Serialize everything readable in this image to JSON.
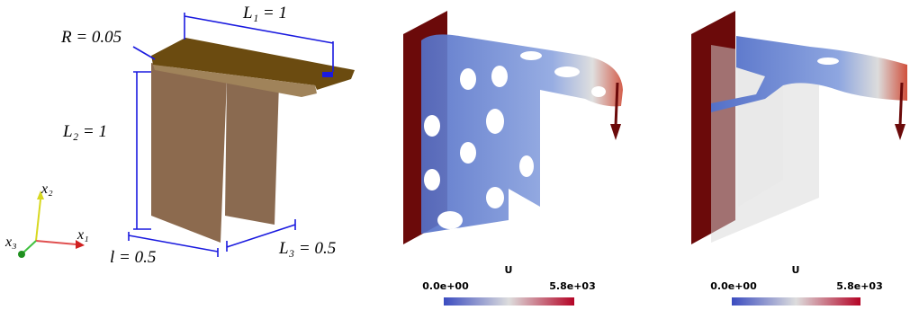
{
  "geometry": {
    "labels": {
      "R": "R = 0.05",
      "L1": "L₁ = 1",
      "L2": "L₂ = 1",
      "l": "l = 0.5",
      "L3": "L₃ = 0.5"
    },
    "axes": {
      "x1": "x₁",
      "x2": "x₂",
      "x3": "x₃"
    }
  },
  "colorbars": [
    {
      "title": "U",
      "min_label": "0.0e+00",
      "max_label": "5.8e+03"
    },
    {
      "title": "U",
      "min_label": "0.0e+00",
      "max_label": "5.8e+03"
    }
  ]
}
